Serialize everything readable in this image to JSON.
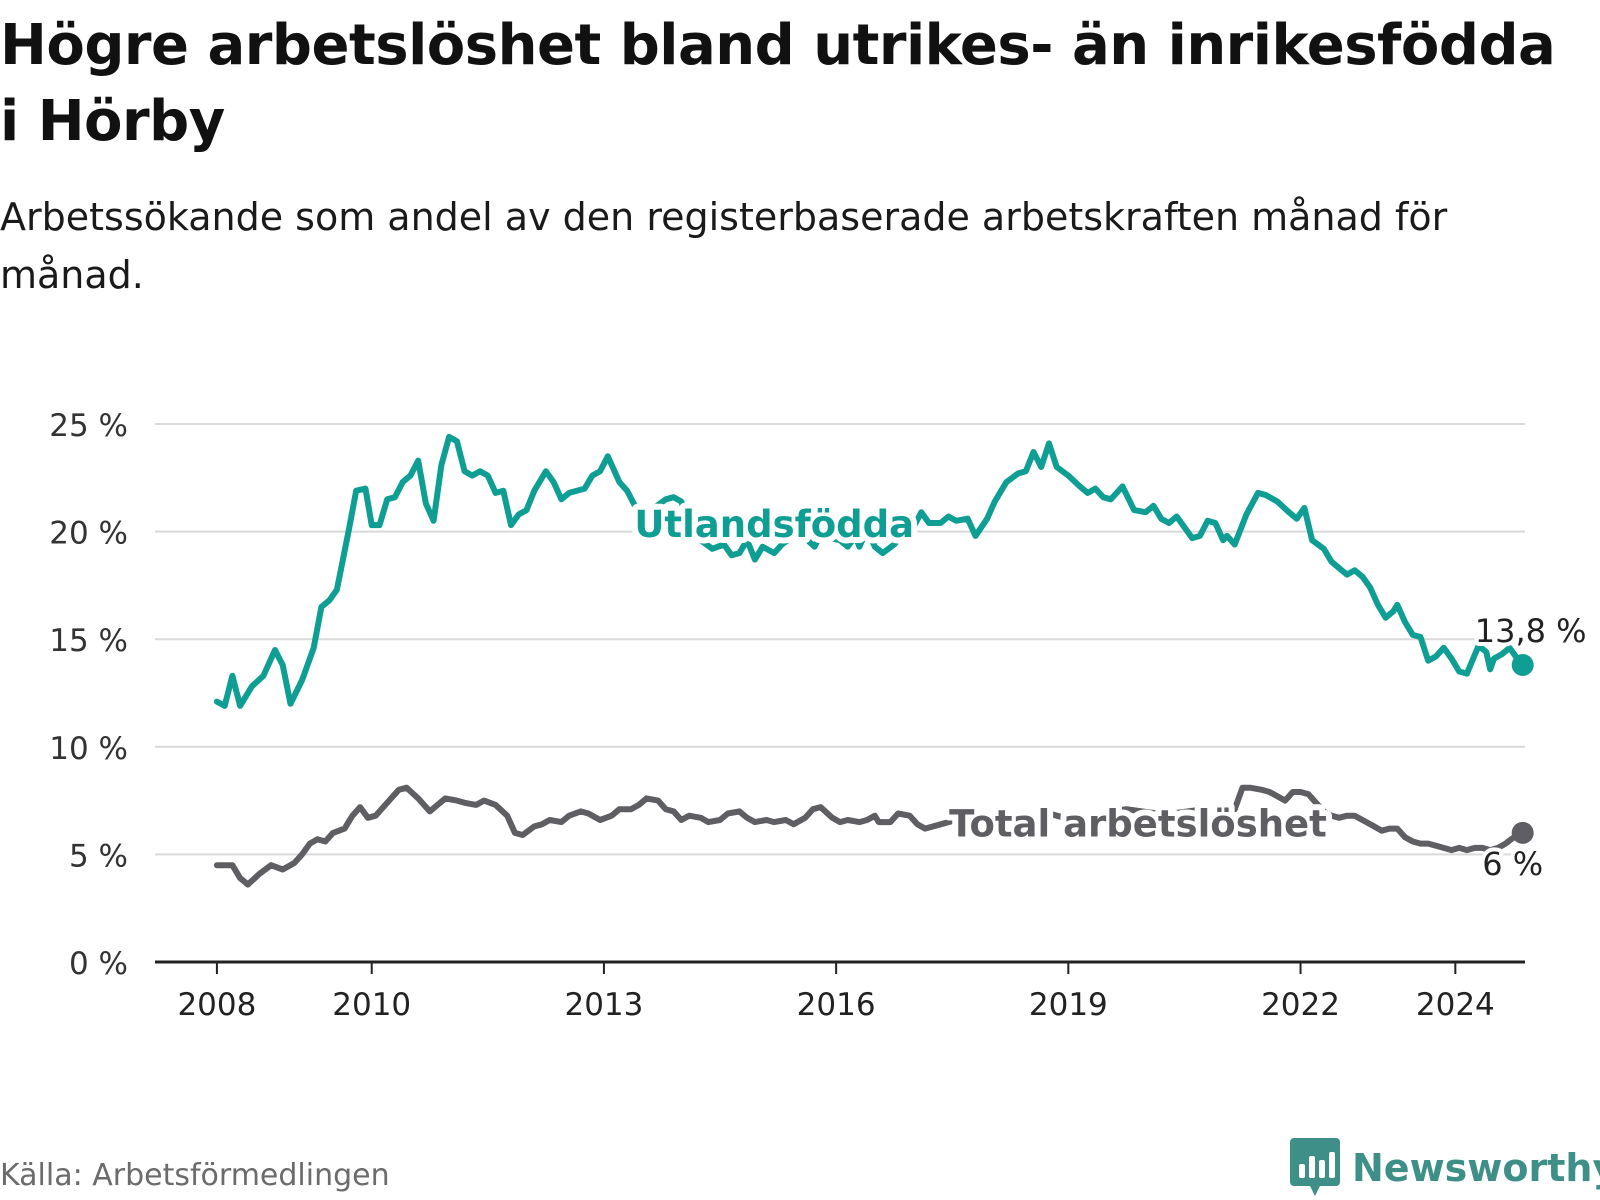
{
  "title": "Högre arbetslöshet bland utrikes- än inrikesfödda i Hörby",
  "subtitle": "Arbetssökande som andel av den registerbaserade arbetskraften månad för månad.",
  "source": "Källa: Arbetsförmedlingen",
  "brand": "Newsworthy",
  "brand_icon": "bar-chart-logo-icon",
  "chart_data": {
    "type": "line",
    "title": "Högre arbetslöshet bland utrikes- än inrikesfödda i Hörby",
    "xlabel": "",
    "ylabel": "",
    "x_ticks": [
      {
        "label": "2008",
        "value": 2008.0
      },
      {
        "label": "2010",
        "value": 2010.0
      },
      {
        "label": "2013",
        "value": 2013.0
      },
      {
        "label": "2016",
        "value": 2016.0
      },
      {
        "label": "2019",
        "value": 2019.0
      },
      {
        "label": "2022",
        "value": 2022.0
      },
      {
        "label": "2024",
        "value": 2024.0
      }
    ],
    "y_ticks": [
      {
        "label": "0 %",
        "value": 0
      },
      {
        "label": "5 %",
        "value": 5
      },
      {
        "label": "10 %",
        "value": 10
      },
      {
        "label": "15 %",
        "value": 15
      },
      {
        "label": "20 %",
        "value": 20
      },
      {
        "label": "25 %",
        "value": 25
      }
    ],
    "xlim": [
      2007.2,
      2024.9
    ],
    "ylim": [
      0,
      25
    ],
    "grid": true,
    "series": [
      {
        "name": "Utlandsfödda",
        "color": "#0f9e93",
        "end_label": "13,8 %",
        "end_value": 13.8,
        "points": [
          [
            2008.0,
            12.1
          ],
          [
            2008.1,
            11.9
          ],
          [
            2008.2,
            13.3
          ],
          [
            2008.3,
            11.9
          ],
          [
            2008.45,
            12.8
          ],
          [
            2008.6,
            13.3
          ],
          [
            2008.75,
            14.5
          ],
          [
            2008.85,
            13.8
          ],
          [
            2008.95,
            12.0
          ],
          [
            2009.1,
            13.1
          ],
          [
            2009.25,
            14.6
          ],
          [
            2009.35,
            16.5
          ],
          [
            2009.45,
            16.8
          ],
          [
            2009.55,
            17.3
          ],
          [
            2009.7,
            20.0
          ],
          [
            2009.8,
            21.9
          ],
          [
            2009.92,
            22.0
          ],
          [
            2010.0,
            20.3
          ],
          [
            2010.1,
            20.3
          ],
          [
            2010.2,
            21.5
          ],
          [
            2010.3,
            21.6
          ],
          [
            2010.4,
            22.3
          ],
          [
            2010.5,
            22.6
          ],
          [
            2010.6,
            23.3
          ],
          [
            2010.7,
            21.3
          ],
          [
            2010.8,
            20.5
          ],
          [
            2010.9,
            23.1
          ],
          [
            2011.0,
            24.4
          ],
          [
            2011.1,
            24.2
          ],
          [
            2011.2,
            22.8
          ],
          [
            2011.3,
            22.6
          ],
          [
            2011.4,
            22.8
          ],
          [
            2011.5,
            22.6
          ],
          [
            2011.6,
            21.8
          ],
          [
            2011.7,
            21.9
          ],
          [
            2011.8,
            20.3
          ],
          [
            2011.9,
            20.8
          ],
          [
            2012.0,
            21.0
          ],
          [
            2012.1,
            21.9
          ],
          [
            2012.25,
            22.8
          ],
          [
            2012.35,
            22.3
          ],
          [
            2012.45,
            21.5
          ],
          [
            2012.55,
            21.8
          ],
          [
            2012.75,
            22.0
          ],
          [
            2012.85,
            22.6
          ],
          [
            2012.95,
            22.8
          ],
          [
            2013.05,
            23.5
          ],
          [
            2013.2,
            22.3
          ],
          [
            2013.3,
            21.9
          ],
          [
            2013.4,
            21.2
          ],
          [
            2013.5,
            20.8
          ],
          [
            2013.65,
            21.1
          ],
          [
            2013.8,
            21.5
          ],
          [
            2013.9,
            21.6
          ],
          [
            2014.0,
            21.4
          ],
          [
            2014.1,
            20.3
          ],
          [
            2014.25,
            19.6
          ],
          [
            2014.4,
            19.2
          ],
          [
            2014.55,
            19.4
          ],
          [
            2014.65,
            18.9
          ],
          [
            2014.75,
            19.0
          ],
          [
            2014.85,
            19.6
          ],
          [
            2014.95,
            18.7
          ],
          [
            2015.05,
            19.3
          ],
          [
            2015.2,
            19.0
          ],
          [
            2015.3,
            19.4
          ],
          [
            2015.45,
            19.8
          ],
          [
            2015.6,
            19.7
          ],
          [
            2015.72,
            19.3
          ],
          [
            2015.82,
            20.0
          ],
          [
            2015.92,
            19.7
          ],
          [
            2016.05,
            19.6
          ],
          [
            2016.15,
            19.3
          ],
          [
            2016.25,
            19.8
          ],
          [
            2016.3,
            19.3
          ],
          [
            2016.4,
            20.1
          ],
          [
            2016.5,
            19.3
          ],
          [
            2016.6,
            19.0
          ],
          [
            2016.75,
            19.4
          ],
          [
            2016.9,
            20.1
          ],
          [
            2017.0,
            20.2
          ],
          [
            2017.1,
            20.9
          ],
          [
            2017.2,
            20.4
          ],
          [
            2017.35,
            20.4
          ],
          [
            2017.45,
            20.7
          ],
          [
            2017.55,
            20.5
          ],
          [
            2017.7,
            20.6
          ],
          [
            2017.8,
            19.8
          ],
          [
            2017.95,
            20.6
          ],
          [
            2018.05,
            21.4
          ],
          [
            2018.2,
            22.3
          ],
          [
            2018.35,
            22.7
          ],
          [
            2018.45,
            22.8
          ],
          [
            2018.55,
            23.7
          ],
          [
            2018.65,
            23.0
          ],
          [
            2018.75,
            24.1
          ],
          [
            2018.85,
            23.0
          ],
          [
            2019.0,
            22.6
          ],
          [
            2019.15,
            22.1
          ],
          [
            2019.25,
            21.8
          ],
          [
            2019.35,
            22.0
          ],
          [
            2019.45,
            21.6
          ],
          [
            2019.55,
            21.5
          ],
          [
            2019.7,
            22.1
          ],
          [
            2019.85,
            21.0
          ],
          [
            2020.0,
            20.9
          ],
          [
            2020.1,
            21.2
          ],
          [
            2020.2,
            20.6
          ],
          [
            2020.3,
            20.4
          ],
          [
            2020.4,
            20.7
          ],
          [
            2020.5,
            20.2
          ],
          [
            2020.6,
            19.7
          ],
          [
            2020.7,
            19.8
          ],
          [
            2020.8,
            20.5
          ],
          [
            2020.9,
            20.4
          ],
          [
            2021.0,
            19.6
          ],
          [
            2021.05,
            19.8
          ],
          [
            2021.15,
            19.4
          ],
          [
            2021.3,
            20.8
          ],
          [
            2021.45,
            21.8
          ],
          [
            2021.55,
            21.7
          ],
          [
            2021.7,
            21.4
          ],
          [
            2021.85,
            20.9
          ],
          [
            2021.95,
            20.6
          ],
          [
            2022.05,
            21.1
          ],
          [
            2022.15,
            19.6
          ],
          [
            2022.3,
            19.2
          ],
          [
            2022.4,
            18.6
          ],
          [
            2022.5,
            18.3
          ],
          [
            2022.6,
            18.0
          ],
          [
            2022.7,
            18.2
          ],
          [
            2022.8,
            17.9
          ],
          [
            2022.9,
            17.4
          ],
          [
            2023.0,
            16.6
          ],
          [
            2023.1,
            16.0
          ],
          [
            2023.2,
            16.3
          ],
          [
            2023.25,
            16.6
          ],
          [
            2023.35,
            15.8
          ],
          [
            2023.45,
            15.2
          ],
          [
            2023.55,
            15.1
          ],
          [
            2023.65,
            14.0
          ],
          [
            2023.75,
            14.2
          ],
          [
            2023.85,
            14.6
          ],
          [
            2023.95,
            14.1
          ],
          [
            2024.05,
            13.5
          ],
          [
            2024.15,
            13.4
          ],
          [
            2024.3,
            14.7
          ],
          [
            2024.4,
            14.4
          ],
          [
            2024.45,
            13.6
          ],
          [
            2024.5,
            14.1
          ],
          [
            2024.6,
            14.3
          ],
          [
            2024.7,
            14.6
          ],
          [
            2024.8,
            14.1
          ],
          [
            2024.87,
            13.8
          ]
        ]
      },
      {
        "name": "Total arbetslöshet",
        "color": "#5e5e63",
        "end_label": "6 %",
        "end_value": 6,
        "points": [
          [
            2008.0,
            4.5
          ],
          [
            2008.2,
            4.5
          ],
          [
            2008.3,
            3.9
          ],
          [
            2008.4,
            3.6
          ],
          [
            2008.55,
            4.1
          ],
          [
            2008.7,
            4.5
          ],
          [
            2008.85,
            4.3
          ],
          [
            2009.0,
            4.6
          ],
          [
            2009.1,
            5.0
          ],
          [
            2009.2,
            5.5
          ],
          [
            2009.3,
            5.7
          ],
          [
            2009.4,
            5.6
          ],
          [
            2009.5,
            6.0
          ],
          [
            2009.65,
            6.2
          ],
          [
            2009.75,
            6.8
          ],
          [
            2009.85,
            7.2
          ],
          [
            2009.95,
            6.7
          ],
          [
            2010.05,
            6.8
          ],
          [
            2010.2,
            7.4
          ],
          [
            2010.35,
            8.0
          ],
          [
            2010.45,
            8.1
          ],
          [
            2010.6,
            7.6
          ],
          [
            2010.75,
            7.0
          ],
          [
            2010.85,
            7.3
          ],
          [
            2010.95,
            7.6
          ],
          [
            2011.1,
            7.5
          ],
          [
            2011.2,
            7.4
          ],
          [
            2011.35,
            7.3
          ],
          [
            2011.45,
            7.5
          ],
          [
            2011.6,
            7.3
          ],
          [
            2011.75,
            6.8
          ],
          [
            2011.85,
            6.0
          ],
          [
            2011.95,
            5.9
          ],
          [
            2012.1,
            6.3
          ],
          [
            2012.2,
            6.4
          ],
          [
            2012.3,
            6.6
          ],
          [
            2012.45,
            6.5
          ],
          [
            2012.55,
            6.8
          ],
          [
            2012.7,
            7.0
          ],
          [
            2012.8,
            6.9
          ],
          [
            2012.95,
            6.6
          ],
          [
            2013.1,
            6.8
          ],
          [
            2013.2,
            7.1
          ],
          [
            2013.35,
            7.1
          ],
          [
            2013.45,
            7.3
          ],
          [
            2013.55,
            7.6
          ],
          [
            2013.7,
            7.5
          ],
          [
            2013.8,
            7.1
          ],
          [
            2013.9,
            7.0
          ],
          [
            2014.0,
            6.6
          ],
          [
            2014.1,
            6.8
          ],
          [
            2014.25,
            6.7
          ],
          [
            2014.35,
            6.5
          ],
          [
            2014.5,
            6.6
          ],
          [
            2014.6,
            6.9
          ],
          [
            2014.75,
            7.0
          ],
          [
            2014.85,
            6.7
          ],
          [
            2014.95,
            6.5
          ],
          [
            2015.1,
            6.6
          ],
          [
            2015.2,
            6.5
          ],
          [
            2015.35,
            6.6
          ],
          [
            2015.45,
            6.4
          ],
          [
            2015.6,
            6.7
          ],
          [
            2015.7,
            7.1
          ],
          [
            2015.8,
            7.2
          ],
          [
            2015.95,
            6.7
          ],
          [
            2016.05,
            6.5
          ],
          [
            2016.15,
            6.6
          ],
          [
            2016.3,
            6.5
          ],
          [
            2016.4,
            6.6
          ],
          [
            2016.5,
            6.8
          ],
          [
            2016.55,
            6.5
          ],
          [
            2016.7,
            6.5
          ],
          [
            2016.8,
            6.9
          ],
          [
            2016.95,
            6.8
          ],
          [
            2017.05,
            6.4
          ],
          [
            2017.15,
            6.2
          ],
          [
            2017.35,
            6.4
          ],
          [
            2017.55,
            6.6
          ],
          [
            2017.75,
            6.9
          ],
          [
            2017.95,
            6.8
          ],
          [
            2018.15,
            6.6
          ],
          [
            2018.35,
            6.7
          ],
          [
            2018.55,
            6.8
          ],
          [
            2018.75,
            6.9
          ],
          [
            2018.95,
            6.7
          ],
          [
            2019.15,
            6.6
          ],
          [
            2019.35,
            6.8
          ],
          [
            2019.55,
            7.0
          ],
          [
            2019.75,
            7.1
          ],
          [
            2019.95,
            7.0
          ],
          [
            2020.15,
            6.9
          ],
          [
            2020.35,
            6.9
          ],
          [
            2020.55,
            7.0
          ],
          [
            2020.75,
            7.1
          ],
          [
            2020.95,
            7.0
          ],
          [
            2021.15,
            7.1
          ],
          [
            2021.25,
            8.1
          ],
          [
            2021.35,
            8.1
          ],
          [
            2021.5,
            8.0
          ],
          [
            2021.6,
            7.9
          ],
          [
            2021.7,
            7.7
          ],
          [
            2021.8,
            7.5
          ],
          [
            2021.9,
            7.9
          ],
          [
            2022.0,
            7.9
          ],
          [
            2022.1,
            7.8
          ],
          [
            2022.2,
            7.4
          ],
          [
            2022.3,
            7.0
          ],
          [
            2022.4,
            6.8
          ],
          [
            2022.5,
            6.7
          ],
          [
            2022.6,
            6.8
          ],
          [
            2022.7,
            6.8
          ],
          [
            2022.8,
            6.6
          ],
          [
            2022.95,
            6.3
          ],
          [
            2023.05,
            6.1
          ],
          [
            2023.15,
            6.2
          ],
          [
            2023.25,
            6.2
          ],
          [
            2023.35,
            5.8
          ],
          [
            2023.45,
            5.6
          ],
          [
            2023.55,
            5.5
          ],
          [
            2023.65,
            5.5
          ],
          [
            2023.75,
            5.4
          ],
          [
            2023.85,
            5.3
          ],
          [
            2023.95,
            5.2
          ],
          [
            2024.05,
            5.3
          ],
          [
            2024.15,
            5.2
          ],
          [
            2024.25,
            5.3
          ],
          [
            2024.35,
            5.3
          ],
          [
            2024.45,
            5.2
          ],
          [
            2024.55,
            5.3
          ],
          [
            2024.65,
            5.5
          ],
          [
            2024.72,
            5.7
          ],
          [
            2024.8,
            5.9
          ],
          [
            2024.87,
            6.0
          ]
        ]
      }
    ],
    "annotations": [
      {
        "text": "Utlandsfödda",
        "series": "Utlandsfödda",
        "x": 2015.2,
        "y": 20.3
      },
      {
        "text": "Total arbetslöshet",
        "series": "Total arbetslöshet",
        "x": 2019.9,
        "y": 6.4
      }
    ]
  }
}
